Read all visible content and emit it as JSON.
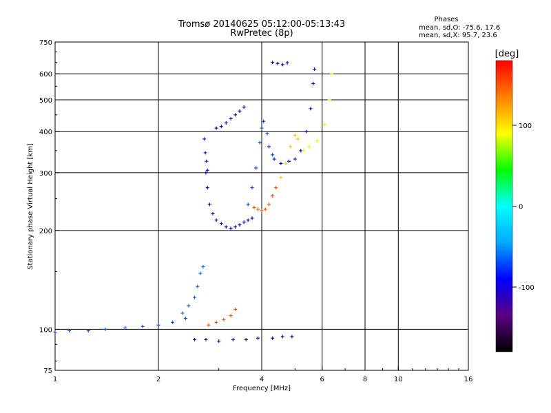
{
  "chart_data": {
    "type": "scatter",
    "title": "Tromsø 20140625 05:12:00-05:13:43",
    "subtitle": "RwPretec (8p)",
    "phases": {
      "heading": "Phases",
      "line_o": "mean, sd,O: -75.6, 17.6",
      "line_x": "mean, sd,X:  95.7, 23.6"
    },
    "xlabel": "Frequency [MHz]",
    "ylabel": "Stationary phase Virtual Height [km]",
    "x_scale": "log",
    "y_scale": "log",
    "xlim": [
      1,
      16
    ],
    "ylim": [
      75,
      750
    ],
    "xticks": [
      {
        "value": 1,
        "label": "1"
      },
      {
        "value": 2,
        "label": "2"
      },
      {
        "value": 4,
        "label": "4"
      },
      {
        "value": 6,
        "label": "6"
      },
      {
        "value": 8,
        "label": "8"
      },
      {
        "value": 10,
        "label": "10"
      },
      {
        "value": 16,
        "label": "16"
      }
    ],
    "yticks": [
      {
        "value": 75,
        "label": "75"
      },
      {
        "value": 100,
        "label": "100"
      },
      {
        "value": 200,
        "label": "200"
      },
      {
        "value": 300,
        "label": "300"
      },
      {
        "value": 400,
        "label": "400"
      },
      {
        "value": 500,
        "label": "500"
      },
      {
        "value": 600,
        "label": "600"
      },
      {
        "value": 750,
        "label": "750"
      }
    ],
    "grid": true,
    "colorbar": {
      "label": "[deg]",
      "range": [
        -180,
        180
      ],
      "ticks": [
        {
          "value": 100,
          "label": "100"
        },
        {
          "value": 0,
          "label": "0"
        },
        {
          "value": -100,
          "label": "-100"
        }
      ],
      "colors": [
        "#000000",
        "#5a0080",
        "#0000ff",
        "#00aaff",
        "#00ffff",
        "#00ff00",
        "#ffff00",
        "#ff8000",
        "#ff0000"
      ]
    },
    "traces": [
      {
        "name": "",
        "phase": -110,
        "x": [
          2.75,
          2.78,
          2.82,
          2.88,
          2.95,
          3.05,
          3.15,
          3.25,
          3.35,
          3.45,
          3.55,
          3.65,
          3.75
        ],
        "y": [
          300,
          270,
          240,
          225,
          215,
          210,
          205,
          203,
          205,
          208,
          212,
          215,
          218
        ]
      },
      {
        "name": "",
        "phase": -115,
        "x": [
          2.95,
          3.05,
          3.15,
          3.25,
          3.35,
          3.45,
          3.55
        ],
        "y": [
          410,
          415,
          425,
          438,
          450,
          462,
          475
        ]
      },
      {
        "name": "",
        "phase": -80,
        "x": [
          2.72,
          2.74,
          2.76,
          2.78
        ],
        "y": [
          380,
          345,
          325,
          305
        ]
      },
      {
        "name": "",
        "phase": -70,
        "x": [
          3.65,
          3.75,
          3.85,
          3.95,
          4.0,
          4.05,
          4.15,
          4.3
        ],
        "y": [
          240,
          270,
          310,
          370,
          410,
          430,
          395,
          340
        ]
      },
      {
        "name": "",
        "phase": -85,
        "x": [
          4.2,
          4.35,
          4.55,
          4.8
        ],
        "y": [
          360,
          330,
          320,
          325
        ]
      },
      {
        "name": "",
        "phase": -105,
        "x": [
          5.0,
          5.2,
          5.4,
          5.55,
          5.65,
          5.7
        ],
        "y": [
          330,
          350,
          400,
          470,
          560,
          620
        ]
      },
      {
        "name": "",
        "phase": -105,
        "x": [
          4.3,
          4.45,
          4.6,
          4.75
        ],
        "y": [
          650,
          645,
          640,
          648
        ]
      },
      {
        "name": "",
        "phase": 150,
        "x": [
          3.8,
          3.9,
          4.0,
          4.1,
          4.2,
          4.3,
          4.4
        ],
        "y": [
          235,
          232,
          230,
          232,
          240,
          255,
          270
        ]
      },
      {
        "name": "",
        "phase": 110,
        "x": [
          4.55,
          4.7,
          4.85,
          5.0,
          5.1
        ],
        "y": [
          290,
          320,
          360,
          390,
          380
        ]
      },
      {
        "name": "",
        "phase": 85,
        "x": [
          5.3,
          5.5,
          5.8,
          6.1,
          6.3,
          6.4
        ],
        "y": [
          350,
          360,
          375,
          420,
          500,
          600
        ]
      },
      {
        "name": "",
        "phase": -70,
        "x": [
          1.0,
          1.1,
          1.25,
          1.4,
          1.6,
          1.8,
          2.0,
          2.2,
          2.4
        ],
        "y": [
          98,
          99,
          99,
          100,
          101,
          102,
          103,
          105,
          108
        ]
      },
      {
        "name": "",
        "phase": -60,
        "x": [
          2.35,
          2.45,
          2.55,
          2.6,
          2.65,
          2.7
        ],
        "y": [
          112,
          118,
          125,
          135,
          148,
          155
        ]
      },
      {
        "name": "",
        "phase": 150,
        "x": [
          2.8,
          2.95,
          3.1,
          3.25,
          3.35
        ],
        "y": [
          103,
          105,
          107,
          110,
          115
        ]
      },
      {
        "name": "",
        "phase": -110,
        "x": [
          2.55,
          2.75,
          3.0,
          3.3,
          3.6,
          3.9,
          4.3,
          4.6,
          4.9
        ],
        "y": [
          93,
          93,
          92,
          93,
          93,
          94,
          94,
          95,
          95
        ]
      }
    ]
  }
}
